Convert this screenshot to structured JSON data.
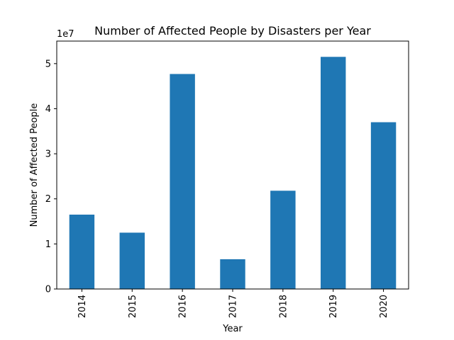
{
  "chart_data": {
    "type": "bar",
    "title": "Number of Affected People by Disasters per Year",
    "xlabel": "Year",
    "ylabel": "Number of Affected People",
    "y_offset_label": "1e7",
    "y_scale": 10000000,
    "categories": [
      "2014",
      "2015",
      "2016",
      "2017",
      "2018",
      "2019",
      "2020"
    ],
    "values": [
      16500000,
      12500000,
      47700000,
      6600000,
      21800000,
      51500000,
      37000000
    ],
    "ylim": [
      0,
      55000000
    ],
    "yticks": [
      0,
      10000000,
      20000000,
      30000000,
      40000000,
      50000000
    ],
    "ytick_labels": [
      "0",
      "1",
      "2",
      "3",
      "4",
      "5"
    ],
    "grid": false,
    "bar_color": "#1f77b4"
  }
}
